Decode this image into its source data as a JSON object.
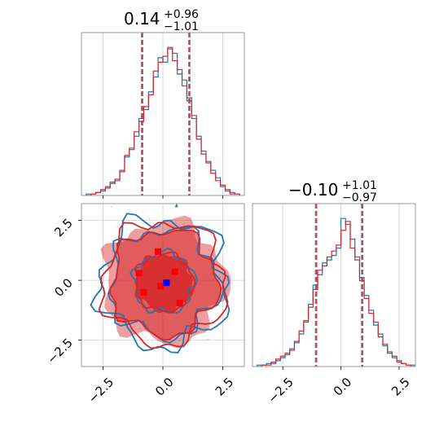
{
  "chart_data": [
    {
      "type": "histogram",
      "panel": "top-left",
      "title": {
        "value": "0.14",
        "plus": "+0.96",
        "minus": "−1.01"
      },
      "median": 0.14,
      "quantile_lines": [
        -0.87,
        1.1
      ],
      "xlim": [
        -3.4,
        3.4
      ],
      "grid": true,
      "bins": [
        -3.2,
        -3.0,
        -2.8,
        -2.6,
        -2.4,
        -2.2,
        -2.0,
        -1.8,
        -1.6,
        -1.4,
        -1.2,
        -1.0,
        -0.8,
        -0.6,
        -0.4,
        -0.2,
        0.0,
        0.2,
        0.4,
        0.6,
        0.8,
        1.0,
        1.2,
        1.4,
        1.6,
        1.8,
        2.0,
        2.2,
        2.4,
        2.6,
        2.8,
        3.0,
        3.2
      ],
      "series": [
        {
          "color": "#1f77b4",
          "values": [
            1,
            1,
            2,
            3,
            6,
            8,
            10,
            17,
            26,
            31,
            40,
            52,
            58,
            70,
            80,
            93,
            90,
            99,
            96,
            82,
            78,
            66,
            52,
            40,
            30,
            23,
            17,
            12,
            6,
            3,
            2,
            1
          ]
        },
        {
          "color": "#d62728",
          "values": [
            0,
            1,
            2,
            4,
            5,
            9,
            11,
            16,
            27,
            32,
            43,
            50,
            60,
            68,
            84,
            90,
            94,
            100,
            91,
            85,
            74,
            64,
            54,
            38,
            28,
            22,
            15,
            10,
            7,
            4,
            1,
            1
          ]
        }
      ]
    },
    {
      "type": "contour",
      "panel": "bottom-left",
      "xlim": [
        -3.4,
        3.4
      ],
      "ylim": [
        -3.6,
        3.2
      ],
      "xticks": [
        -2.5,
        0.0,
        2.5
      ],
      "yticks": [
        -2.5,
        0.0,
        2.5
      ],
      "xtick_labels": [
        "−2.5",
        "0.0",
        "2.5"
      ],
      "ytick_labels": [
        "−2.5",
        "0.0",
        "2.5"
      ],
      "grid": true,
      "levels": [
        {
          "series": "#1f77b4",
          "radius": 1.25,
          "jitter": 0.16
        },
        {
          "series": "#1f77b4",
          "radius": 2.25,
          "jitter": 0.2
        },
        {
          "series": "#1f77b4",
          "radius": 2.65,
          "jitter": 0.22
        },
        {
          "series": "#d62728",
          "radius": 1.2,
          "jitter": 0.13
        },
        {
          "series": "#d62728",
          "radius": 2.2,
          "jitter": 0.16
        },
        {
          "series": "#d62728",
          "radius": 2.55,
          "jitter": 0.17
        }
      ],
      "red_points": [
        [
          -0.2,
          1.2
        ],
        [
          -1.0,
          0.3
        ],
        [
          -0.8,
          -0.5
        ],
        [
          0.5,
          0.35
        ],
        [
          0.7,
          -0.95
        ],
        [
          -0.1,
          -0.25
        ]
      ],
      "blue_point": [
        0.15,
        -0.1
      ],
      "blue_fill_color": "#1f77b4",
      "red_fill_color": "#d62728"
    },
    {
      "type": "histogram",
      "panel": "bottom-right",
      "title": {
        "value": "−0.10",
        "plus": "+1.01",
        "minus": "−0.97"
      },
      "median": -0.1,
      "quantile_lines": [
        -1.07,
        0.91
      ],
      "xlim": [
        -3.8,
        3.2
      ],
      "grid": true,
      "xticks": [
        -2.5,
        0.0,
        2.5
      ],
      "xtick_labels": [
        "−2.5",
        "0.0",
        "2.5"
      ],
      "bins": [
        -3.6,
        -3.4,
        -3.2,
        -3.0,
        -2.8,
        -2.6,
        -2.4,
        -2.2,
        -2.0,
        -1.8,
        -1.6,
        -1.4,
        -1.2,
        -1.0,
        -0.8,
        -0.6,
        -0.4,
        -0.2,
        0.0,
        0.2,
        0.4,
        0.6,
        0.8,
        1.0,
        1.2,
        1.4,
        1.6,
        1.8,
        2.0,
        2.2,
        2.4,
        2.6,
        2.8,
        3.0,
        3.2
      ],
      "series": [
        {
          "color": "#1f77b4",
          "values": [
            1,
            1,
            2,
            2,
            4,
            6,
            8,
            12,
            16,
            22,
            30,
            42,
            55,
            62,
            70,
            72,
            75,
            80,
            100,
            96,
            86,
            74,
            60,
            48,
            38,
            28,
            22,
            14,
            10,
            6,
            4,
            2,
            1,
            1
          ]
        },
        {
          "color": "#d62728",
          "values": [
            0,
            1,
            1,
            3,
            5,
            7,
            9,
            11,
            17,
            24,
            31,
            40,
            52,
            65,
            68,
            74,
            78,
            82,
            92,
            98,
            80,
            72,
            58,
            46,
            36,
            30,
            20,
            15,
            9,
            7,
            3,
            2,
            1,
            0
          ]
        }
      ]
    }
  ]
}
